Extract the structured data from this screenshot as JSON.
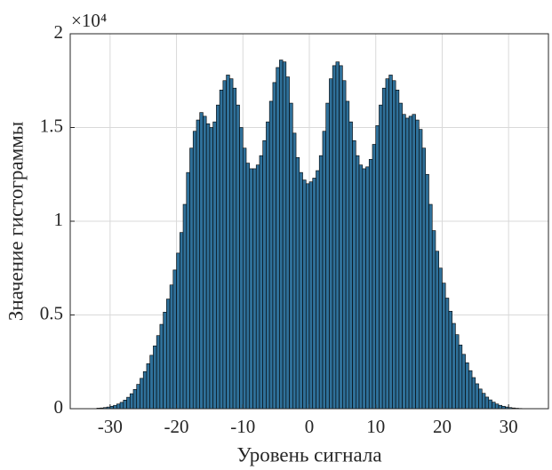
{
  "chart_data": {
    "type": "histogram",
    "xlabel": "Уровень сигнала",
    "ylabel": "Значение гистограммы",
    "y_exponent_label": "×10⁴",
    "color": "#2f7099",
    "edgecolor": "#000000",
    "grid": true,
    "xlim": [
      -36,
      36
    ],
    "ylim": [
      0,
      20000
    ],
    "xticks": [
      -30,
      -20,
      -10,
      0,
      10,
      20,
      30
    ],
    "yticks": [
      0,
      {
        "value": 5000,
        "label": "0.5"
      },
      {
        "value": 10000,
        "label": "1"
      },
      {
        "value": 15000,
        "label": "1.5"
      },
      {
        "value": 20000,
        "label": "2"
      }
    ],
    "bins": [
      -32,
      -31.5,
      -31,
      -30.5,
      -30,
      -29.5,
      -29,
      -28.5,
      -28,
      -27.5,
      -27,
      -26.5,
      -26,
      -25.5,
      -25,
      -24.5,
      -24,
      -23.5,
      -23,
      -22.5,
      -22,
      -21.5,
      -21,
      -20.5,
      -20,
      -19.5,
      -19,
      -18.5,
      -18,
      -17.5,
      -17,
      -16.5,
      -16,
      -15.5,
      -15,
      -14.5,
      -14,
      -13.5,
      -13,
      -12.5,
      -12,
      -11.5,
      -11,
      -10.5,
      -10,
      -9.5,
      -9,
      -8.5,
      -8,
      -7.5,
      -7,
      -6.5,
      -6,
      -5.5,
      -5,
      -4.5,
      -4,
      -3.5,
      -3,
      -2.5,
      -2,
      -1.5,
      -1,
      -0.5,
      0,
      0.5,
      1,
      1.5,
      2,
      2.5,
      3,
      3.5,
      4,
      4.5,
      5,
      5.5,
      6,
      6.5,
      7,
      7.5,
      8,
      8.5,
      9,
      9.5,
      10,
      10.5,
      11,
      11.5,
      12,
      12.5,
      13,
      13.5,
      14,
      14.5,
      15,
      15.5,
      16,
      16.5,
      17,
      17.5,
      18,
      18.5,
      19,
      19.5,
      20,
      20.5,
      21,
      21.5,
      22,
      22.5,
      23,
      23.5,
      24,
      24.5,
      25,
      25.5,
      26,
      26.5,
      27,
      27.5,
      28,
      28.5,
      29,
      29.5,
      30,
      30.5,
      31,
      31.5,
      32
    ],
    "values": [
      30,
      40,
      60,
      90,
      130,
      180,
      250,
      340,
      460,
      610,
      800,
      1030,
      1300,
      1620,
      1980,
      2400,
      2850,
      3350,
      3900,
      4500,
      5150,
      5850,
      6600,
      7400,
      8300,
      9400,
      10900,
      12600,
      13900,
      14800,
      15400,
      15800,
      15600,
      15200,
      15000,
      15300,
      16200,
      17000,
      17500,
      17800,
      17600,
      17100,
      16200,
      15000,
      13900,
      13100,
      12800,
      12800,
      13000,
      13500,
      14300,
      15300,
      16400,
      17400,
      18200,
      18600,
      18500,
      17700,
      16300,
      14700,
      13400,
      12600,
      12200,
      12000,
      12100,
      12300,
      12700,
      13500,
      14800,
      16300,
      17600,
      18300,
      18500,
      18300,
      17500,
      16400,
      15300,
      14300,
      13500,
      13000,
      12800,
      12900,
      13300,
      14100,
      15100,
      16200,
      17100,
      17600,
      17800,
      17500,
      17000,
      16300,
      15700,
      15500,
      15600,
      15700,
      15400,
      14900,
      13900,
      12500,
      10900,
      9500,
      8400,
      7500,
      6700,
      5900,
      5200,
      4550,
      3950,
      3400,
      2900,
      2450,
      2030,
      1660,
      1330,
      1050,
      820,
      620,
      470,
      350,
      250,
      180,
      130,
      90,
      60,
      40,
      25,
      15
    ]
  }
}
